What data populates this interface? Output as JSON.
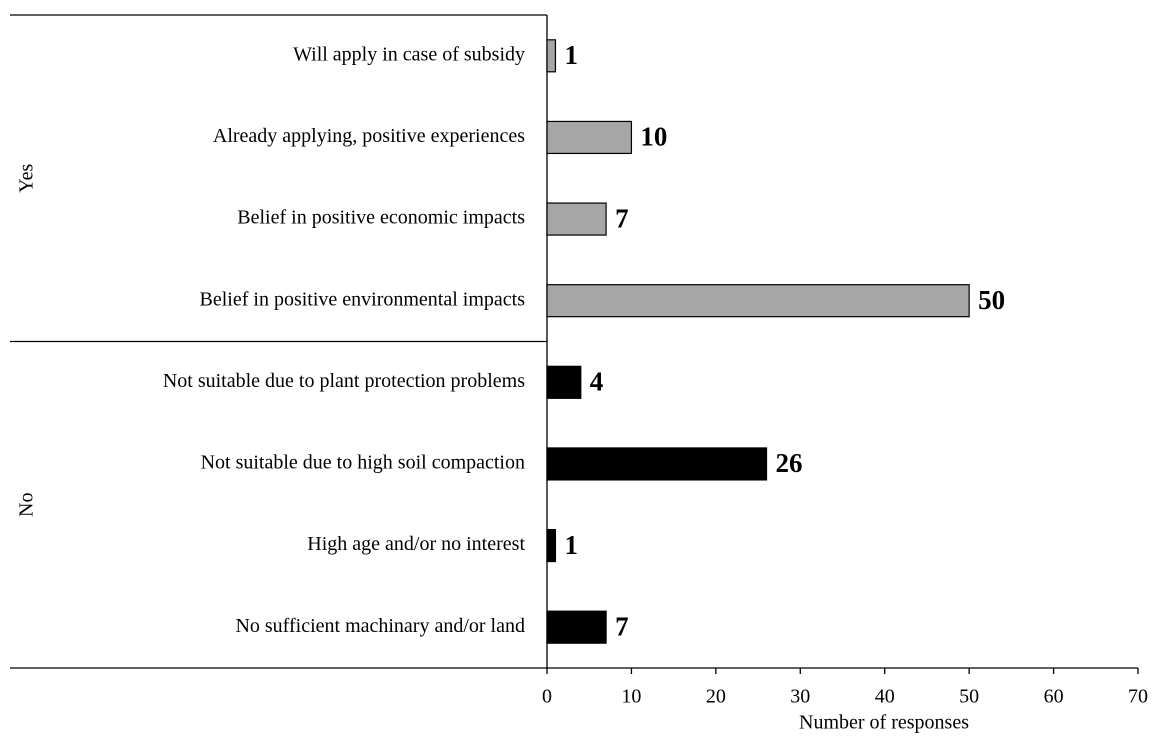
{
  "chart_data": {
    "type": "grouped-hbar",
    "xlabel": "Number of responses",
    "xlim": [
      0,
      70
    ],
    "xticks": [
      0,
      10,
      20,
      30,
      40,
      50,
      60,
      70
    ],
    "groups": [
      {
        "name": "Yes",
        "color": "#a6a6a6",
        "categories": [
          "Will apply in case of subsidy",
          "Already applying, positive experiences",
          "Belief in positive economic impacts",
          "Belief in positive environmental impacts"
        ],
        "values": [
          1,
          10,
          7,
          50
        ]
      },
      {
        "name": "No",
        "color": "#000000",
        "categories": [
          "Not suitable due to plant protection problems",
          "Not suitable due to high soil compaction",
          "High age and/or no interest",
          "No sufficient machinary and/or land"
        ],
        "values": [
          4,
          26,
          1,
          7
        ]
      }
    ]
  }
}
